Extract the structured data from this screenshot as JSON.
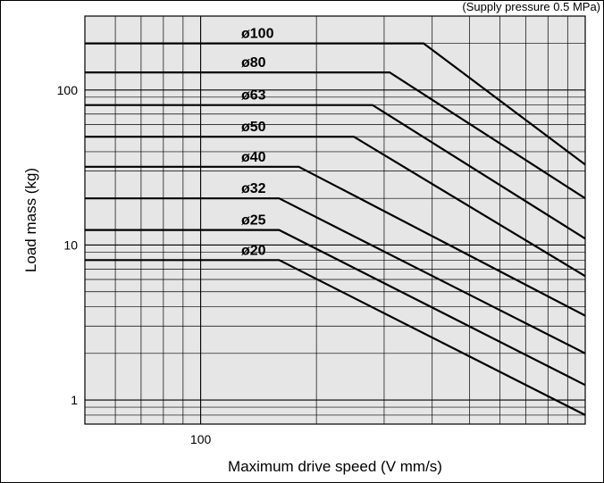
{
  "chart_data": {
    "type": "line",
    "header_text": "(Supply pressure 0.5 MPa)",
    "xlabel": "Maximum drive speed (V mm/s)",
    "ylabel": "Load mass (kg)",
    "x_scale": "log",
    "y_scale": "log",
    "xlim": [
      50,
      1000
    ],
    "ylim": [
      0.7,
      300
    ],
    "x_ticks": [
      {
        "value": 100,
        "label": "100"
      }
    ],
    "y_ticks": [
      {
        "value": 1,
        "label": "1"
      },
      {
        "value": 10,
        "label": "10"
      },
      {
        "value": 100,
        "label": "100"
      }
    ],
    "grid": true,
    "background": "#e6e6e6",
    "line_color": "#000000",
    "series": [
      {
        "name": "ø100",
        "x": [
          50,
          380,
          1000
        ],
        "y": [
          200,
          200,
          33
        ]
      },
      {
        "name": "ø80",
        "x": [
          50,
          310,
          1000
        ],
        "y": [
          130,
          130,
          20
        ]
      },
      {
        "name": "ø63",
        "x": [
          50,
          280,
          1000
        ],
        "y": [
          80,
          80,
          11
        ]
      },
      {
        "name": "ø50",
        "x": [
          50,
          250,
          1000
        ],
        "y": [
          50,
          50,
          6.3
        ]
      },
      {
        "name": "ø40",
        "x": [
          50,
          180,
          1000
        ],
        "y": [
          32,
          32,
          3.5
        ]
      },
      {
        "name": "ø32",
        "x": [
          50,
          160,
          1000
        ],
        "y": [
          20,
          20,
          2.0
        ]
      },
      {
        "name": "ø25",
        "x": [
          50,
          160,
          1000
        ],
        "y": [
          12.5,
          12.5,
          1.25
        ]
      },
      {
        "name": "ø20",
        "x": [
          50,
          160,
          1000
        ],
        "y": [
          8,
          8,
          0.8
        ]
      }
    ]
  }
}
